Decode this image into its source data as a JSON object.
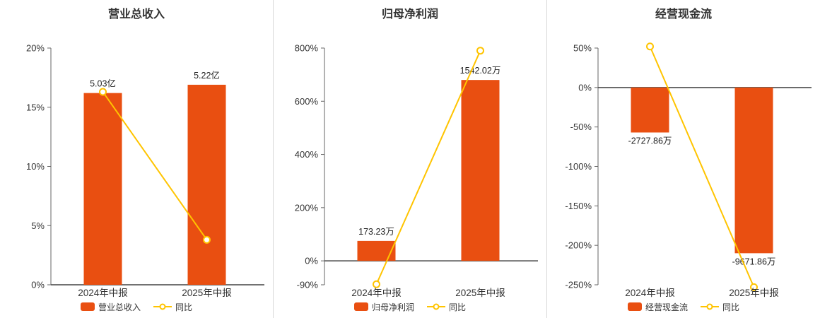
{
  "page": {
    "background": "#ffffff"
  },
  "palette": {
    "bar_color": "#e94f11",
    "line_color": "#ffc400",
    "axis_line_color": "#666666",
    "zero_line_color": "#444444",
    "tick_text_color": "#333333",
    "value_label_color": "#222222",
    "title_color": "#333333",
    "divider_color": "#d9d9d9"
  },
  "chart_data": [
    {
      "type": "bar",
      "title": "营业总收入",
      "categories": [
        "2024年中报",
        "2025年中报"
      ],
      "y_axis": {
        "min": 0,
        "max": 20,
        "ticks": [
          0,
          5,
          10,
          15,
          20
        ],
        "unit": "%"
      },
      "bar_series": {
        "name": "营业总收入",
        "value_labels": [
          "5.03亿",
          "5.22亿"
        ],
        "plotted_axis_values": [
          16.2,
          16.9
        ]
      },
      "line_series": {
        "name": "同比",
        "values": [
          16.3,
          3.8
        ]
      },
      "legend": [
        "营业总收入",
        "同比"
      ],
      "legend_position": "bottom",
      "grid": false
    },
    {
      "type": "bar",
      "title": "归母净利润",
      "categories": [
        "2024年中报",
        "2025年中报"
      ],
      "y_axis": {
        "min": -90,
        "max": 800,
        "ticks": [
          -90,
          0,
          200,
          400,
          600,
          800
        ],
        "unit": "%"
      },
      "bar_series": {
        "name": "归母净利润",
        "value_labels": [
          "173.23万",
          "1542.02万"
        ],
        "plotted_axis_values": [
          75,
          680
        ]
      },
      "line_series": {
        "name": "同比",
        "values": [
          -88,
          790.2
        ]
      },
      "legend": [
        "归母净利润",
        "同比"
      ],
      "legend_position": "bottom",
      "grid": false
    },
    {
      "type": "bar",
      "title": "经营现金流",
      "categories": [
        "2024年中报",
        "2025年中报"
      ],
      "y_axis": {
        "min": -250,
        "max": 50,
        "ticks": [
          -250,
          -200,
          -150,
          -100,
          -50,
          0,
          50
        ],
        "unit": "%"
      },
      "bar_series": {
        "name": "经营现金流",
        "value_labels": [
          "-2727.86万",
          "-9671.86万"
        ],
        "plotted_axis_values": [
          -57,
          -210
        ]
      },
      "line_series": {
        "name": "同比",
        "values": [
          52,
          -253
        ]
      },
      "legend": [
        "经营现金流",
        "同比"
      ],
      "legend_position": "bottom",
      "grid": false
    }
  ]
}
